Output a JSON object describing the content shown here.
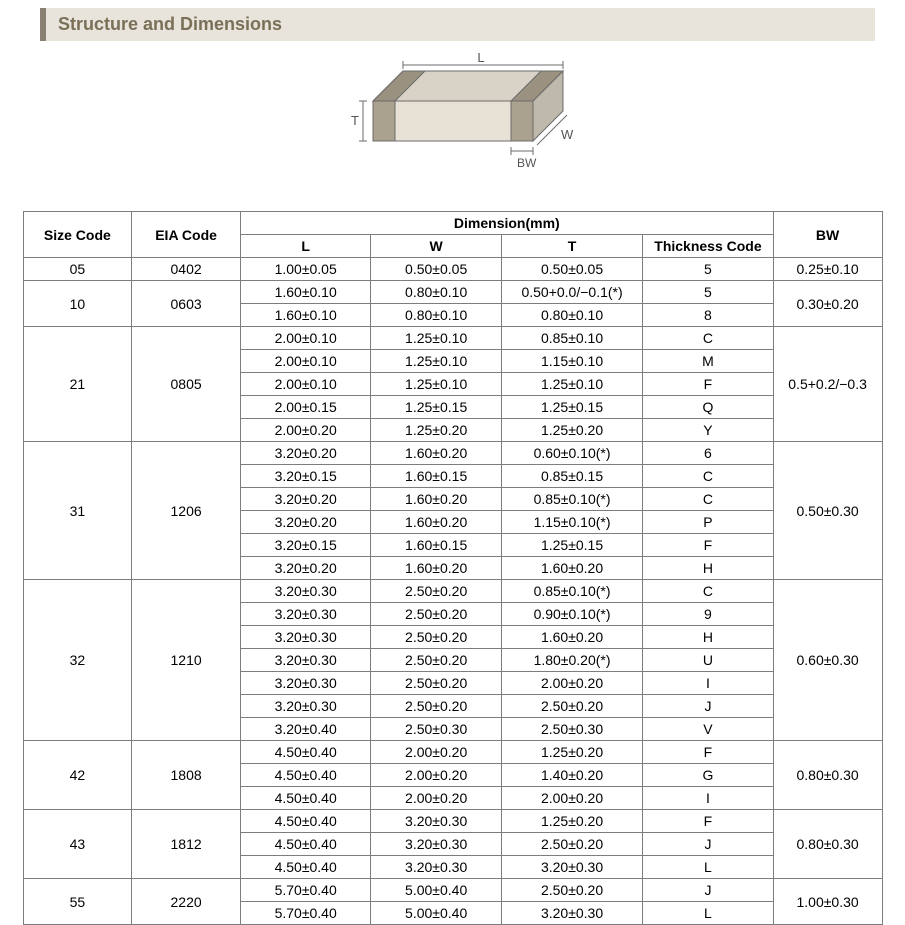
{
  "title": "Structure and Dimensions",
  "diagram": {
    "labels": {
      "L": "L",
      "W": "W",
      "T": "T",
      "BW": "BW"
    },
    "stroke": "#6b6b6b",
    "fill_top": "#d9d3c7",
    "fill_side": "#bfb9ab",
    "fill_front": "#e8e2d6",
    "band_fill": "#aaa18e"
  },
  "headers": {
    "size": "Size Code",
    "eia": "EIA Code",
    "dim": "Dimension(mm)",
    "L": "L",
    "W": "W",
    "T": "T",
    "thick": "Thickness  Code",
    "BW": "BW"
  },
  "groups": [
    {
      "size": "05",
      "eia": "0402",
      "bw": "0.25±0.10",
      "rows": [
        {
          "L": "1.00±0.05",
          "W": "0.50±0.05",
          "T": "0.50±0.05",
          "tc": "5"
        }
      ]
    },
    {
      "size": "10",
      "eia": "0603",
      "bw": "0.30±0.20",
      "rows": [
        {
          "L": "1.60±0.10",
          "W": "0.80±0.10",
          "T": "0.50+0.0/−0.1(*)",
          "tc": "5"
        },
        {
          "L": "1.60±0.10",
          "W": "0.80±0.10",
          "T": "0.80±0.10",
          "tc": "8"
        }
      ]
    },
    {
      "size": "21",
      "eia": "0805",
      "bw": "0.5+0.2/−0.3",
      "rows": [
        {
          "L": "2.00±0.10",
          "W": "1.25±0.10",
          "T": "0.85±0.10",
          "tc": "C"
        },
        {
          "L": "2.00±0.10",
          "W": "1.25±0.10",
          "T": "1.15±0.10",
          "tc": "M"
        },
        {
          "L": "2.00±0.10",
          "W": "1.25±0.10",
          "T": "1.25±0.10",
          "tc": "F"
        },
        {
          "L": "2.00±0.15",
          "W": "1.25±0.15",
          "T": "1.25±0.15",
          "tc": "Q"
        },
        {
          "L": "2.00±0.20",
          "W": "1.25±0.20",
          "T": "1.25±0.20",
          "tc": "Y"
        }
      ]
    },
    {
      "size": "31",
      "eia": "1206",
      "bw": "0.50±0.30",
      "rows": [
        {
          "L": "3.20±0.20",
          "W": "1.60±0.20",
          "T": "0.60±0.10(*)",
          "tc": "6"
        },
        {
          "L": "3.20±0.15",
          "W": "1.60±0.15",
          "T": "0.85±0.15",
          "tc": "C"
        },
        {
          "L": "3.20±0.20",
          "W": "1.60±0.20",
          "T": "0.85±0.10(*)",
          "tc": "C"
        },
        {
          "L": "3.20±0.20",
          "W": "1.60±0.20",
          "T": "1.15±0.10(*)",
          "tc": "P"
        },
        {
          "L": "3.20±0.15",
          "W": "1.60±0.15",
          "T": "1.25±0.15",
          "tc": "F"
        },
        {
          "L": "3.20±0.20",
          "W": "1.60±0.20",
          "T": "1.60±0.20",
          "tc": "H"
        }
      ]
    },
    {
      "size": "32",
      "eia": "1210",
      "bw": "0.60±0.30",
      "rows": [
        {
          "L": "3.20±0.30",
          "W": "2.50±0.20",
          "T": "0.85±0.10(*)",
          "tc": "C"
        },
        {
          "L": "3.20±0.30",
          "W": "2.50±0.20",
          "T": "0.90±0.10(*)",
          "tc": "9"
        },
        {
          "L": "3.20±0.30",
          "W": "2.50±0.20",
          "T": "1.60±0.20",
          "tc": "H"
        },
        {
          "L": "3.20±0.30",
          "W": "2.50±0.20",
          "T": "1.80±0.20(*)",
          "tc": "U"
        },
        {
          "L": "3.20±0.30",
          "W": "2.50±0.20",
          "T": "2.00±0.20",
          "tc": "I"
        },
        {
          "L": "3.20±0.30",
          "W": "2.50±0.20",
          "T": "2.50±0.20",
          "tc": "J"
        },
        {
          "L": "3.20±0.40",
          "W": "2.50±0.30",
          "T": "2.50±0.30",
          "tc": "V"
        }
      ]
    },
    {
      "size": "42",
      "eia": "1808",
      "bw": "0.80±0.30",
      "rows": [
        {
          "L": "4.50±0.40",
          "W": "2.00±0.20",
          "T": "1.25±0.20",
          "tc": "F"
        },
        {
          "L": "4.50±0.40",
          "W": "2.00±0.20",
          "T": "1.40±0.20",
          "tc": "G"
        },
        {
          "L": "4.50±0.40",
          "W": "2.00±0.20",
          "T": "2.00±0.20",
          "tc": "I"
        }
      ]
    },
    {
      "size": "43",
      "eia": "1812",
      "bw": "0.80±0.30",
      "rows": [
        {
          "L": "4.50±0.40",
          "W": "3.20±0.30",
          "T": "1.25±0.20",
          "tc": "F"
        },
        {
          "L": "4.50±0.40",
          "W": "3.20±0.30",
          "T": "2.50±0.20",
          "tc": "J"
        },
        {
          "L": "4.50±0.40",
          "W": "3.20±0.30",
          "T": "3.20±0.30",
          "tc": "L"
        }
      ]
    },
    {
      "size": "55",
      "eia": "2220",
      "bw": "1.00±0.30",
      "rows": [
        {
          "L": "5.70±0.40",
          "W": "5.00±0.40",
          "T": "2.50±0.20",
          "tc": "J"
        },
        {
          "L": "5.70±0.40",
          "W": "5.00±0.40",
          "T": "3.20±0.30",
          "tc": "L"
        }
      ]
    }
  ]
}
